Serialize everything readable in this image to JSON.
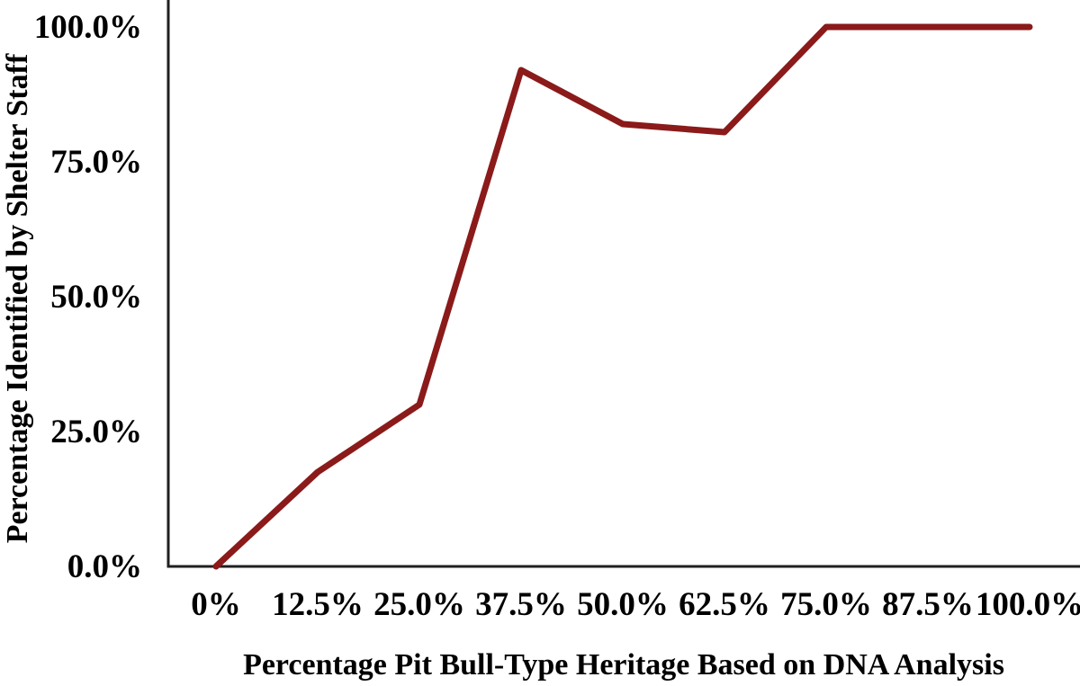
{
  "chart_data": {
    "type": "line",
    "xlabel": "Percentage Pit Bull-Type Heritage Based on DNA Analysis",
    "ylabel": "Percentage Identified by Shelter Staff",
    "x_tick_labels": [
      "0%",
      "12.5%",
      "25.0%",
      "37.5%",
      "50.0%",
      "62.5%",
      "75.0%",
      "87.5%",
      "100.0%"
    ],
    "x": [
      0,
      12.5,
      25,
      37.5,
      50,
      62.5,
      75,
      87.5,
      100
    ],
    "values": [
      0,
      17.5,
      30,
      92,
      82,
      80.5,
      100,
      100,
      100
    ],
    "y_tick_labels": [
      "0.0%",
      "25.0%",
      "50.0%",
      "75.0%",
      "100.0%"
    ],
    "y_ticks": [
      0,
      25,
      50,
      75,
      100
    ],
    "xlim": [
      0,
      100
    ],
    "ylim": [
      0,
      100
    ],
    "grid": false,
    "legend": false,
    "line_color": "#8B1A1A",
    "axis_color": "#1f1f1f"
  }
}
